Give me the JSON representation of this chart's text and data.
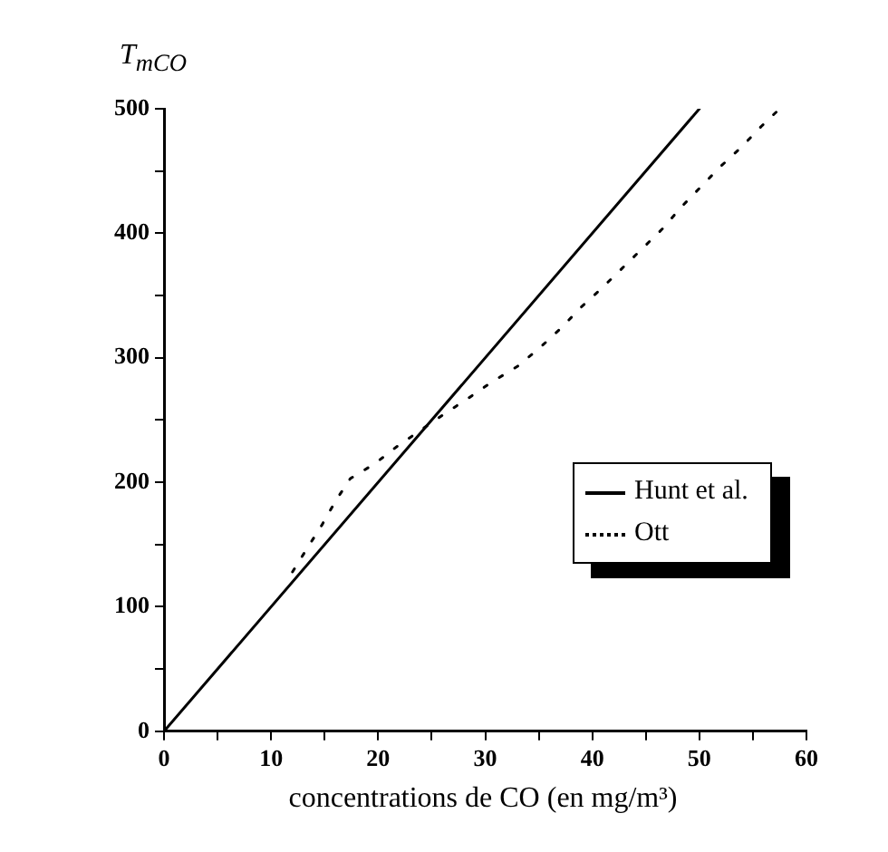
{
  "chart_data": {
    "type": "line",
    "xlabel": "concentrations de CO (en mg/m³)",
    "ylabel": "T$_{mCO}$",
    "xlim": [
      0,
      60
    ],
    "ylim": [
      0,
      500
    ],
    "xticks": [
      0,
      {
        "value": 5,
        "label": null
      },
      10,
      {
        "value": 15,
        "label": null
      },
      20,
      {
        "value": 25,
        "label": null
      },
      30,
      {
        "value": 35,
        "label": null
      },
      40,
      {
        "value": 45,
        "label": null
      },
      50,
      {
        "value": 55,
        "label": null
      },
      60
    ],
    "yticks": [
      0,
      {
        "value": 50,
        "label": null
      },
      100,
      {
        "value": 150,
        "label": null
      },
      200,
      {
        "value": 250,
        "label": null
      },
      300,
      {
        "value": 350,
        "label": null
      },
      400,
      {
        "value": 450,
        "label": null
      },
      500
    ],
    "grid": false,
    "legend": "right",
    "marker": "none",
    "series": [
      {
        "name": "Hunt et al.",
        "color": "#000000",
        "line_style": "solid",
        "x": [
          0,
          50
        ],
        "values": [
          0,
          500
        ]
      },
      {
        "name": "Ott",
        "color": "#000000",
        "line_style": "dotted",
        "x": [
          12,
          13.3,
          14.7,
          16.1,
          17.4,
          19.7,
          21.8,
          26.2,
          28.5,
          30.7,
          33,
          35.1,
          37.1,
          39,
          40.9,
          42.8,
          44.7,
          46.6,
          48.3,
          50.1,
          51.9,
          53.9,
          55.8,
          57.5
        ],
        "values": [
          128,
          146,
          165,
          186,
          203,
          215,
          229,
          255,
          268,
          281,
          293,
          308,
          324,
          341,
          356,
          372,
          388,
          404,
          421,
          437,
          453,
          469,
          486,
          500
        ]
      }
    ]
  }
}
